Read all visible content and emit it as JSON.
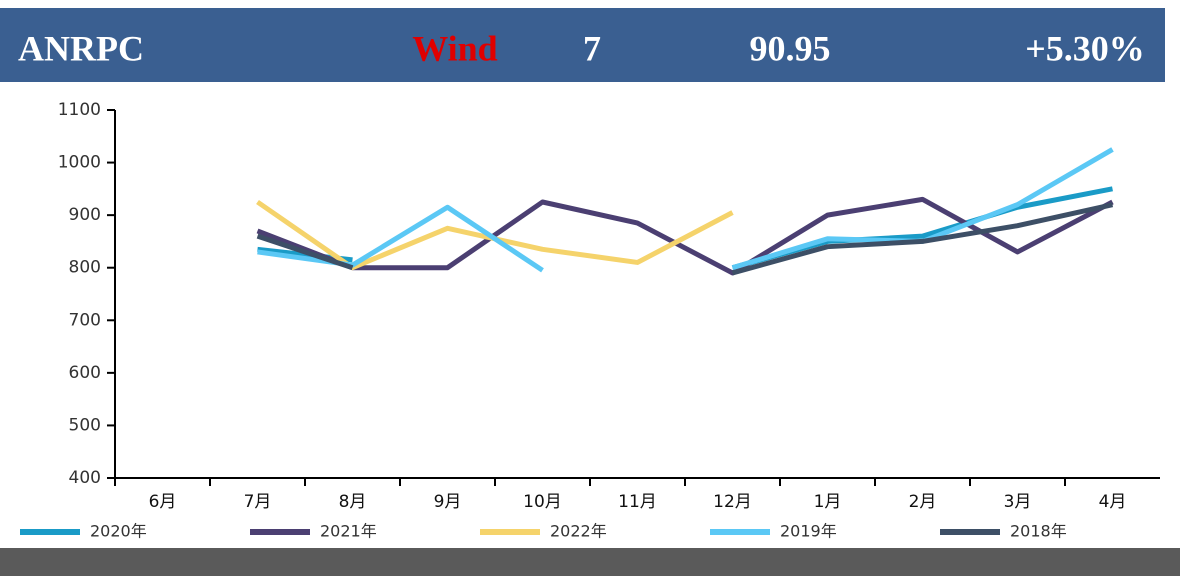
{
  "header": {
    "source": "ANRPC",
    "provider": "Wind",
    "month": "7",
    "value": "90.95",
    "change": "+5.30%"
  },
  "chart_data": {
    "type": "line",
    "categories": [
      "6月",
      "7月",
      "8月",
      "9月",
      "10月",
      "11月",
      "12月",
      "1月",
      "2月",
      "3月",
      "4月"
    ],
    "series": [
      {
        "name": "2020年",
        "color": "#1a9bc7",
        "values": [
          null,
          835,
          815,
          null,
          null,
          null,
          800,
          850,
          860,
          915,
          950
        ]
      },
      {
        "name": "2021年",
        "color": "#4b3f72",
        "values": [
          null,
          870,
          800,
          800,
          925,
          885,
          790,
          900,
          930,
          830,
          925
        ]
      },
      {
        "name": "2022年",
        "color": "#f5d36b",
        "values": [
          null,
          925,
          800,
          875,
          835,
          810,
          905,
          null,
          null,
          null,
          null
        ]
      },
      {
        "name": "2019年",
        "color": "#5bc8f5",
        "values": [
          null,
          830,
          805,
          915,
          795,
          null,
          800,
          855,
          850,
          920,
          1025
        ]
      },
      {
        "name": "2018年",
        "color": "#3d4f66",
        "values": [
          null,
          860,
          800,
          null,
          null,
          null,
          790,
          840,
          850,
          880,
          920
        ]
      }
    ],
    "ylim": [
      400,
      1100
    ],
    "yticks": [
      400,
      500,
      600,
      700,
      800,
      900,
      1000,
      1100
    ]
  }
}
